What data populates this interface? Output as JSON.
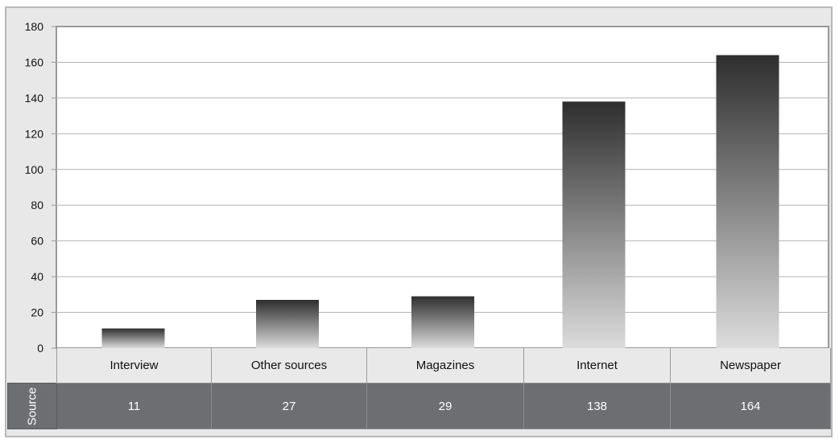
{
  "chart_data": {
    "type": "bar",
    "categories": [
      "Interview",
      "Other sources",
      "Magazines",
      "Internet",
      "Newspaper"
    ],
    "values": [
      11,
      27,
      29,
      138,
      164
    ],
    "ylim": [
      0,
      180
    ],
    "yticks": [
      0,
      20,
      40,
      60,
      80,
      100,
      120,
      140,
      160,
      180
    ],
    "grid": true,
    "bar_gradient": [
      "#2e2e2f",
      "#dcdcdd"
    ],
    "table": {
      "row_label": "Source",
      "values": [
        "11",
        "27",
        "29",
        "138",
        "164"
      ]
    }
  }
}
